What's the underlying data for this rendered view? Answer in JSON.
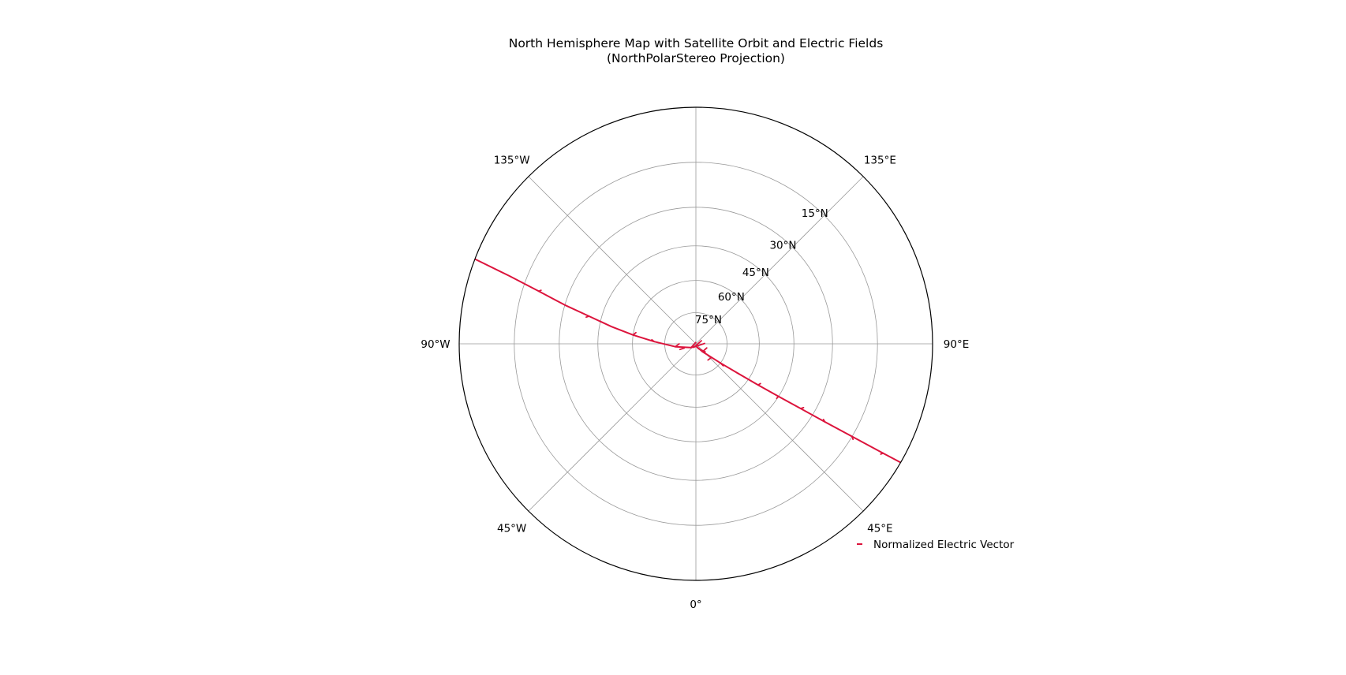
{
  "chart_data": {
    "type": "map",
    "projection": "NorthPolarStereo",
    "title_lines": [
      "North Hemisphere Map with Satellite Orbit and Electric Fields",
      "(NorthPolarStereo Projection)"
    ],
    "extent_min_lat": 0,
    "parallels": [
      {
        "lat": 15,
        "label": "15°N"
      },
      {
        "lat": 30,
        "label": "30°N"
      },
      {
        "lat": 45,
        "label": "45°N"
      },
      {
        "lat": 60,
        "label": "60°N"
      },
      {
        "lat": 75,
        "label": "75°N"
      }
    ],
    "meridians": [
      {
        "lon": 0,
        "label": "0°"
      },
      {
        "lon": 45,
        "label": "45°E"
      },
      {
        "lon": 90,
        "label": "90°E"
      },
      {
        "lon": 135,
        "label": "135°E"
      },
      {
        "lon": 180,
        "label": ""
      },
      {
        "lon": -135,
        "label": "135°W"
      },
      {
        "lon": -90,
        "label": "90°W"
      },
      {
        "lon": -45,
        "label": "45°W"
      }
    ],
    "gridlines": true,
    "orbit": {
      "color": "#dc143c",
      "points": [
        {
          "lon": -111.0,
          "lat": 0.0
        },
        {
          "lon": -110.0,
          "lat": 10.0
        },
        {
          "lon": -108.5,
          "lat": 20.0
        },
        {
          "lon": -106.5,
          "lat": 30.0
        },
        {
          "lon": -104.5,
          "lat": 40.0
        },
        {
          "lon": -101.5,
          "lat": 50.0
        },
        {
          "lon": -98.0,
          "lat": 60.0
        },
        {
          "lon": -93.0,
          "lat": 70.0
        },
        {
          "lon": -82.0,
          "lat": 80.0
        },
        {
          "lon": -52.0,
          "lat": 87.0
        },
        {
          "lon": 5.0,
          "lat": 88.8
        },
        {
          "lon": 40.0,
          "lat": 85.0
        },
        {
          "lon": 52.0,
          "lat": 75.0
        },
        {
          "lon": 55.0,
          "lat": 65.0
        },
        {
          "lon": 56.5,
          "lat": 55.0
        },
        {
          "lon": 57.5,
          "lat": 45.0
        },
        {
          "lon": 58.3,
          "lat": 35.0
        },
        {
          "lon": 58.8,
          "lat": 25.0
        },
        {
          "lon": 59.3,
          "lat": 15.0
        },
        {
          "lon": 59.7,
          "lat": 5.0
        },
        {
          "lon": 59.9,
          "lat": 0.0
        }
      ]
    },
    "electric_vectors": {
      "color": "#dc143c",
      "segments": [
        {
          "lon": -111.0,
          "lat": 0.0,
          "dx": -0.012,
          "dy": 0.006
        },
        {
          "lon": -108.5,
          "lat": 20.0,
          "dx": 0.01,
          "dy": 0.004
        },
        {
          "lon": -104.5,
          "lat": 40.0,
          "dx": -0.012,
          "dy": -0.004
        },
        {
          "lon": -98.0,
          "lat": 60.0,
          "dx": 0.012,
          "dy": 0.01
        },
        {
          "lon": -93.0,
          "lat": 70.0,
          "dx": -0.01,
          "dy": 0.008
        },
        {
          "lon": -82.0,
          "lat": 80.0,
          "dx": 0.016,
          "dy": 0.012
        },
        {
          "lon": -70.0,
          "lat": 84.0,
          "dx": -0.018,
          "dy": -0.006
        },
        {
          "lon": -52.0,
          "lat": 87.0,
          "dx": 0.02,
          "dy": 0.022
        },
        {
          "lon": -30.0,
          "lat": 88.0,
          "dx": 0.032,
          "dy": 0.028
        },
        {
          "lon": 5.0,
          "lat": 88.8,
          "dx": 0.036,
          "dy": 0.012
        },
        {
          "lon": 25.0,
          "lat": 87.5,
          "dx": 0.03,
          "dy": -0.014
        },
        {
          "lon": 40.0,
          "lat": 85.0,
          "dx": 0.018,
          "dy": 0.016
        },
        {
          "lon": 48.0,
          "lat": 80.0,
          "dx": -0.014,
          "dy": -0.01
        },
        {
          "lon": 52.0,
          "lat": 75.0,
          "dx": 0.012,
          "dy": -0.012
        },
        {
          "lon": 55.0,
          "lat": 65.0,
          "dx": -0.01,
          "dy": 0.006
        },
        {
          "lon": 56.5,
          "lat": 55.0,
          "dx": 0.01,
          "dy": 0.006
        },
        {
          "lon": 57.5,
          "lat": 45.0,
          "dx": -0.008,
          "dy": -0.008
        },
        {
          "lon": 58.3,
          "lat": 35.0,
          "dx": 0.012,
          "dy": 0.004
        },
        {
          "lon": 58.8,
          "lat": 25.0,
          "dx": -0.006,
          "dy": 0.01
        },
        {
          "lon": 59.3,
          "lat": 15.0,
          "dx": 0.004,
          "dy": -0.012
        },
        {
          "lon": 59.7,
          "lat": 5.0,
          "dx": -0.01,
          "dy": -0.004
        }
      ]
    },
    "legend": {
      "location": "lower right",
      "entries": [
        {
          "label": "Normalized Electric Vector",
          "color": "#dc143c"
        }
      ]
    },
    "colors": {
      "boundary": "#000000",
      "grid": "#999999",
      "orbit": "#dc143c",
      "vectors": "#dc143c"
    }
  }
}
